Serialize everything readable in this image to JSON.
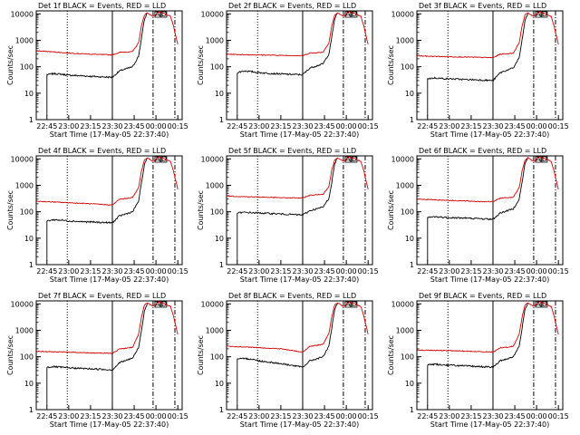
{
  "figure": {
    "xlabel": "Start Time (17-May-05 22:37:40)",
    "ylabel": "Counts/sec",
    "event_markers": [
      "A",
      "D"
    ],
    "colors": {
      "events": "#000000",
      "lld": "#d40000",
      "axes": "#000000",
      "background": "#ffffff"
    }
  },
  "chart_data": [
    {
      "type": "line",
      "title": "Det 1f BLACK = Events, RED = LLD",
      "xlabel": "Start Time (17-May-05 22:37:40)",
      "ylabel": "Counts/sec",
      "xticks": [
        "22:45",
        "23:00",
        "23:15",
        "23:30",
        "23:45",
        "00:00",
        "00:15"
      ],
      "yticks": [
        "1",
        "10",
        "100",
        "1000",
        "10000"
      ],
      "yscale": "log",
      "ylim": [
        1,
        13000
      ],
      "series": [
        {
          "name": "Events",
          "color": "#000000",
          "x": [
            "22:45",
            "22:50",
            "22:55",
            "23:00",
            "23:10",
            "23:20",
            "23:30",
            "23:35",
            "23:40",
            "23:44",
            "23:48",
            "23:50",
            "23:52",
            "23:54"
          ],
          "y": [
            50,
            55,
            52,
            48,
            45,
            42,
            40,
            70,
            85,
            100,
            250,
            1200,
            6000,
            11000
          ]
        },
        {
          "name": "LLD",
          "color": "#d40000",
          "x": [
            "22:38",
            "22:45",
            "23:00",
            "23:15",
            "23:30",
            "23:35",
            "23:40",
            "23:44",
            "23:48",
            "23:50",
            "23:52",
            "23:54",
            "23:58",
            "00:02",
            "00:06",
            "00:10",
            "00:12",
            "00:15"
          ],
          "y": [
            400,
            380,
            330,
            300,
            280,
            350,
            360,
            380,
            800,
            3500,
            9000,
            11000,
            8000,
            12000,
            10000,
            8000,
            3500,
            700
          ]
        }
      ]
    },
    {
      "type": "line",
      "title": "Det 2f BLACK = Events, RED = LLD",
      "xlabel": "Start Time (17-May-05 22:37:40)",
      "ylabel": "Counts/sec",
      "xticks": [
        "22:45",
        "23:00",
        "23:15",
        "23:30",
        "23:45",
        "00:00",
        "00:15"
      ],
      "yticks": [
        "1",
        "10",
        "100",
        "1000",
        "10000"
      ],
      "yscale": "log",
      "ylim": [
        1,
        13000
      ],
      "series": [
        {
          "name": "Events",
          "color": "#000000",
          "x": [
            "22:45",
            "22:50",
            "22:55",
            "23:00",
            "23:10",
            "23:20",
            "23:30",
            "23:35",
            "23:40",
            "23:44",
            "23:48",
            "23:50",
            "23:52",
            "23:54"
          ],
          "y": [
            60,
            70,
            65,
            60,
            55,
            52,
            50,
            90,
            110,
            130,
            300,
            1300,
            6500,
            11000
          ]
        },
        {
          "name": "LLD",
          "color": "#d40000",
          "x": [
            "22:38",
            "22:45",
            "23:00",
            "23:15",
            "23:30",
            "23:35",
            "23:40",
            "23:44",
            "23:48",
            "23:50",
            "23:52",
            "23:54",
            "23:58",
            "00:02",
            "00:06",
            "00:10",
            "00:12",
            "00:15"
          ],
          "y": [
            300,
            290,
            280,
            270,
            260,
            330,
            340,
            360,
            800,
            3500,
            9000,
            11000,
            8000,
            12000,
            10000,
            8000,
            3500,
            700
          ]
        }
      ]
    },
    {
      "type": "line",
      "title": "Det 3f BLACK = Events, RED = LLD",
      "xlabel": "Start Time (17-May-05 22:37:40)",
      "ylabel": "Counts/sec",
      "xticks": [
        "22:45",
        "23:00",
        "23:15",
        "23:30",
        "23:45",
        "00:00",
        "00:15"
      ],
      "yticks": [
        "1",
        "10",
        "100",
        "1000",
        "10000"
      ],
      "yscale": "log",
      "ylim": [
        1,
        13000
      ],
      "series": [
        {
          "name": "Events",
          "color": "#000000",
          "x": [
            "22:45",
            "22:50",
            "22:55",
            "23:00",
            "23:10",
            "23:20",
            "23:30",
            "23:35",
            "23:40",
            "23:44",
            "23:48",
            "23:50",
            "23:52",
            "23:54"
          ],
          "y": [
            35,
            38,
            36,
            35,
            33,
            32,
            30,
            60,
            75,
            90,
            220,
            1000,
            5500,
            10000
          ]
        },
        {
          "name": "LLD",
          "color": "#d40000",
          "x": [
            "22:38",
            "22:45",
            "23:00",
            "23:15",
            "23:30",
            "23:35",
            "23:40",
            "23:44",
            "23:48",
            "23:50",
            "23:52",
            "23:54",
            "23:58",
            "00:02",
            "00:06",
            "00:10",
            "00:12",
            "00:15"
          ],
          "y": [
            260,
            250,
            240,
            230,
            220,
            300,
            310,
            330,
            800,
            3500,
            9000,
            11000,
            8000,
            12000,
            10000,
            8000,
            3500,
            700
          ]
        }
      ]
    },
    {
      "type": "line",
      "title": "Det 4f BLACK = Events, RED = LLD",
      "xlabel": "Start Time (17-May-05 22:37:40)",
      "ylabel": "Counts/sec",
      "xticks": [
        "22:45",
        "23:00",
        "23:15",
        "23:30",
        "23:45",
        "00:00",
        "00:15"
      ],
      "yticks": [
        "1",
        "10",
        "100",
        "1000",
        "10000"
      ],
      "yscale": "log",
      "ylim": [
        1,
        13000
      ],
      "series": [
        {
          "name": "Events",
          "color": "#000000",
          "x": [
            "22:45",
            "22:50",
            "22:55",
            "23:00",
            "23:10",
            "23:20",
            "23:30",
            "23:35",
            "23:40",
            "23:44",
            "23:48",
            "23:50",
            "23:52",
            "23:54"
          ],
          "y": [
            45,
            50,
            48,
            45,
            42,
            40,
            38,
            70,
            85,
            100,
            250,
            1200,
            6000,
            11000
          ]
        },
        {
          "name": "LLD",
          "color": "#d40000",
          "x": [
            "22:38",
            "22:45",
            "23:00",
            "23:15",
            "23:30",
            "23:35",
            "23:40",
            "23:44",
            "23:48",
            "23:50",
            "23:52",
            "23:54",
            "23:58",
            "00:02",
            "00:06",
            "00:10",
            "00:12",
            "00:15"
          ],
          "y": [
            250,
            240,
            220,
            200,
            180,
            300,
            320,
            350,
            800,
            3500,
            9000,
            11000,
            8000,
            12000,
            10000,
            8000,
            3500,
            700
          ]
        }
      ]
    },
    {
      "type": "line",
      "title": "Det 5f BLACK = Events, RED = LLD",
      "xlabel": "Start Time (17-May-05 22:37:40)",
      "ylabel": "Counts/sec",
      "xticks": [
        "22:45",
        "23:00",
        "23:15",
        "23:30",
        "23:45",
        "00:00",
        "00:15"
      ],
      "yticks": [
        "1",
        "10",
        "100",
        "1000",
        "10000"
      ],
      "yscale": "log",
      "ylim": [
        1,
        13000
      ],
      "series": [
        {
          "name": "Events",
          "color": "#000000",
          "x": [
            "22:45",
            "22:50",
            "22:55",
            "23:00",
            "23:10",
            "23:20",
            "23:30",
            "23:35",
            "23:40",
            "23:44",
            "23:48",
            "23:50",
            "23:52",
            "23:54"
          ],
          "y": [
            90,
            95,
            92,
            90,
            85,
            80,
            75,
            110,
            130,
            150,
            320,
            1300,
            6500,
            11000
          ]
        },
        {
          "name": "LLD",
          "color": "#d40000",
          "x": [
            "22:38",
            "22:45",
            "23:00",
            "23:15",
            "23:30",
            "23:35",
            "23:40",
            "23:44",
            "23:48",
            "23:50",
            "23:52",
            "23:54",
            "23:58",
            "00:02",
            "00:06",
            "00:10",
            "00:12",
            "00:15"
          ],
          "y": [
            400,
            380,
            360,
            340,
            330,
            420,
            440,
            460,
            900,
            3800,
            9000,
            11000,
            8000,
            12000,
            10000,
            8000,
            3500,
            700
          ]
        }
      ]
    },
    {
      "type": "line",
      "title": "Det 6f BLACK = Events, RED = LLD",
      "xlabel": "Start Time (17-May-05 22:37:40)",
      "ylabel": "Counts/sec",
      "xticks": [
        "22:45",
        "23:00",
        "23:15",
        "23:30",
        "23:45",
        "00:00",
        "00:15"
      ],
      "yticks": [
        "1",
        "10",
        "100",
        "1000",
        "10000"
      ],
      "yscale": "log",
      "ylim": [
        1,
        13000
      ],
      "series": [
        {
          "name": "Events",
          "color": "#000000",
          "x": [
            "22:45",
            "22:50",
            "22:55",
            "23:00",
            "23:10",
            "23:20",
            "23:30",
            "23:35",
            "23:40",
            "23:44",
            "23:48",
            "23:50",
            "23:52",
            "23:54"
          ],
          "y": [
            60,
            65,
            62,
            60,
            58,
            55,
            52,
            90,
            110,
            130,
            300,
            1300,
            6500,
            11000
          ]
        },
        {
          "name": "LLD",
          "color": "#d40000",
          "x": [
            "22:38",
            "22:45",
            "23:00",
            "23:15",
            "23:30",
            "23:35",
            "23:40",
            "23:44",
            "23:48",
            "23:50",
            "23:52",
            "23:54",
            "23:58",
            "00:02",
            "00:06",
            "00:10",
            "00:12",
            "00:15"
          ],
          "y": [
            300,
            290,
            270,
            250,
            240,
            330,
            340,
            360,
            800,
            3500,
            9000,
            11000,
            8000,
            12000,
            10000,
            8000,
            3500,
            700
          ]
        }
      ]
    },
    {
      "type": "line",
      "title": "Det 7f BLACK = Events, RED = LLD",
      "xlabel": "Start Time (17-May-05 22:37:40)",
      "ylabel": "Counts/sec",
      "xticks": [
        "22:45",
        "23:00",
        "23:15",
        "23:30",
        "23:45",
        "00:00",
        "00:15"
      ],
      "yticks": [
        "1",
        "10",
        "100",
        "1000",
        "10000"
      ],
      "yscale": "log",
      "ylim": [
        1,
        13000
      ],
      "series": [
        {
          "name": "Events",
          "color": "#000000",
          "x": [
            "22:45",
            "22:50",
            "22:55",
            "23:00",
            "23:10",
            "23:20",
            "23:30",
            "23:35",
            "23:40",
            "23:44",
            "23:48",
            "23:50",
            "23:52",
            "23:54"
          ],
          "y": [
            40,
            42,
            40,
            38,
            36,
            34,
            32,
            60,
            75,
            90,
            220,
            1000,
            5500,
            10000
          ]
        },
        {
          "name": "LLD",
          "color": "#d40000",
          "x": [
            "22:38",
            "22:45",
            "23:00",
            "23:15",
            "23:30",
            "23:35",
            "23:40",
            "23:44",
            "23:48",
            "23:50",
            "23:52",
            "23:54",
            "23:58",
            "00:02",
            "00:06",
            "00:10",
            "00:12",
            "00:15"
          ],
          "y": [
            160,
            155,
            150,
            140,
            135,
            200,
            210,
            230,
            700,
            3200,
            9000,
            11000,
            8000,
            12000,
            10000,
            8000,
            3500,
            700
          ]
        }
      ]
    },
    {
      "type": "line",
      "title": "Det 8f BLACK = Events, RED = LLD",
      "xlabel": "Start Time (17-May-05 22:37:40)",
      "ylabel": "Counts/sec",
      "xticks": [
        "22:45",
        "23:00",
        "23:15",
        "23:30",
        "23:45",
        "00:00",
        "00:15"
      ],
      "yticks": [
        "1",
        "10",
        "100",
        "1000",
        "10000"
      ],
      "yscale": "log",
      "ylim": [
        1,
        13000
      ],
      "series": [
        {
          "name": "Events",
          "color": "#000000",
          "x": [
            "22:45",
            "22:50",
            "22:55",
            "23:00",
            "23:10",
            "23:20",
            "23:30",
            "23:35",
            "23:40",
            "23:44",
            "23:48",
            "23:50",
            "23:52",
            "23:54"
          ],
          "y": [
            80,
            85,
            82,
            70,
            60,
            50,
            40,
            70,
            85,
            100,
            250,
            1200,
            6000,
            11000
          ]
        },
        {
          "name": "LLD",
          "color": "#d40000",
          "x": [
            "22:38",
            "22:45",
            "23:00",
            "23:15",
            "23:30",
            "23:35",
            "23:40",
            "23:44",
            "23:48",
            "23:50",
            "23:52",
            "23:54",
            "23:58",
            "00:02",
            "00:06",
            "00:10",
            "00:12",
            "00:15"
          ],
          "y": [
            250,
            240,
            220,
            200,
            150,
            250,
            270,
            300,
            750,
            3300,
            9000,
            11000,
            8000,
            12000,
            10000,
            8000,
            3500,
            700
          ]
        }
      ]
    },
    {
      "type": "line",
      "title": "Det 9f BLACK = Events, RED = LLD",
      "xlabel": "Start Time (17-May-05 22:37:40)",
      "ylabel": "Counts/sec",
      "xticks": [
        "22:45",
        "23:00",
        "23:15",
        "23:30",
        "23:45",
        "00:00",
        "00:15"
      ],
      "yticks": [
        "1",
        "10",
        "100",
        "1000",
        "10000"
      ],
      "yscale": "log",
      "ylim": [
        1,
        13000
      ],
      "series": [
        {
          "name": "Events",
          "color": "#000000",
          "x": [
            "22:45",
            "22:50",
            "22:55",
            "23:00",
            "23:10",
            "23:20",
            "23:30",
            "23:35",
            "23:40",
            "23:44",
            "23:48",
            "23:50",
            "23:52",
            "23:54"
          ],
          "y": [
            50,
            52,
            50,
            48,
            45,
            43,
            40,
            70,
            85,
            100,
            250,
            1200,
            6000,
            11000
          ]
        },
        {
          "name": "LLD",
          "color": "#d40000",
          "x": [
            "22:38",
            "22:45",
            "23:00",
            "23:15",
            "23:30",
            "23:35",
            "23:40",
            "23:44",
            "23:48",
            "23:50",
            "23:52",
            "23:54",
            "23:58",
            "00:02",
            "00:06",
            "00:10",
            "00:12",
            "00:15"
          ],
          "y": [
            180,
            175,
            170,
            160,
            150,
            220,
            230,
            250,
            700,
            3200,
            9000,
            11000,
            8000,
            12000,
            10000,
            8000,
            3500,
            700
          ]
        }
      ]
    }
  ]
}
